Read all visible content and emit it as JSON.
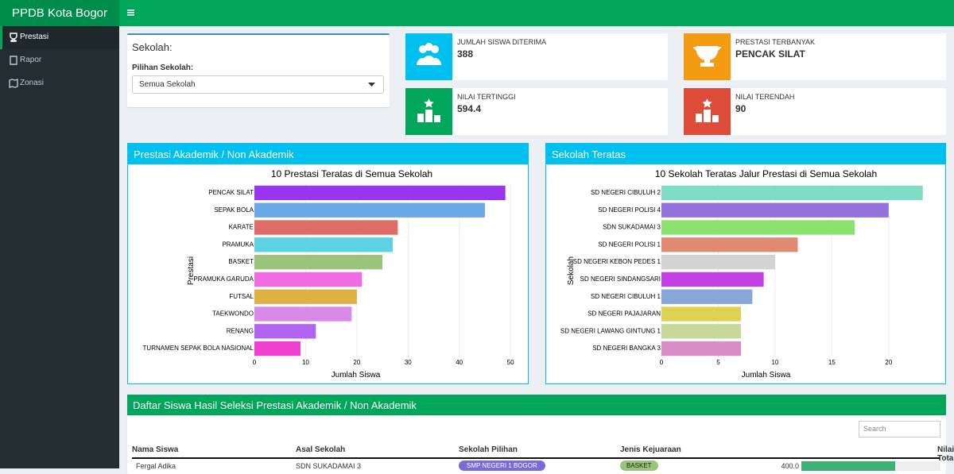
{
  "header": {
    "brand": "PPDB Kota Bogor"
  },
  "menu": [
    "Prestasi",
    "Rapor",
    "Zonasi"
  ],
  "filter": {
    "title": "Sekolah:",
    "label": "Pilihan Sekolah:",
    "selected": "Semua Sekolah"
  },
  "stats": [
    {
      "label": "JUMLAH SISWA DITERIMA",
      "value": 388,
      "color": "#00c0ef"
    },
    {
      "label": "PRESTASI TERBANYAK",
      "value": "PENCAK SILAT",
      "color": "#f39c12"
    },
    {
      "label": "NILAI TERTINGGI",
      "value": 594.4,
      "color": "#00a65a"
    },
    {
      "label": "NILAI TERENDAH",
      "value": 90,
      "color": "#dd4b39"
    }
  ],
  "panels": [
    "Prestasi Akademik / Non Akademik",
    "Sekolah Teratas"
  ],
  "chart_data": [
    {
      "type": "hbar",
      "title": "10 Prestasi Teratas di Semua Sekolah",
      "x_label": "Jumlah Siswa",
      "y_label": "Prestasi",
      "categories": [
        "PENCAK SILAT",
        "SEPAK BOLA",
        "KARATE",
        "PRAMUKA",
        "BASKET",
        "PRAMUKA GARUDA",
        "FUTSAL",
        "TAEKWONDO",
        "RENANG",
        "TURNAMEN SEPAK BOLA NASIONAL"
      ],
      "values": [
        49,
        45,
        28,
        27,
        25,
        21,
        20,
        19,
        12,
        9
      ],
      "colors": [
        "#9a35ee",
        "#6aa7e6",
        "#e06c68",
        "#5ed2e2",
        "#98c57a",
        "#ef6ce2",
        "#e0b143",
        "#d98ae8",
        "#b064f0",
        "#ef40cf"
      ],
      "xlim": [
        0,
        52
      ],
      "xticks": [
        0,
        10,
        20,
        30,
        40,
        50
      ],
      "grid": true
    },
    {
      "type": "hbar",
      "title": "10 Sekolah Teratas Jalur Prestasi di Semua Sekolah",
      "x_label": "Jumlah Siswa",
      "y_label": "Sekolah",
      "categories": [
        "SD NEGERI CIBULUH 2",
        "SD NEGERI POLISI 4",
        "SDN SUKADAMAI 3",
        "SD NEGERI POLISI 1",
        "SD NEGERI KEBON PEDES 1",
        "SD NEGERI SINDANGSARI",
        "SD NEGERI CIBULUH 1",
        "SD NEGERI PAJAJARAN",
        "SD NEGERI LAWANG GINTUNG 1",
        "SD NEGERI BANGKA 3"
      ],
      "values": [
        23,
        20,
        17,
        12,
        10,
        9,
        8,
        7,
        7,
        7
      ],
      "colors": [
        "#7fdcc6",
        "#9272da",
        "#8ae170",
        "#e08a72",
        "#d3d3d3",
        "#c23fe2",
        "#87a7d8",
        "#e1d152",
        "#c8d898",
        "#d98cc8"
      ],
      "xlim": [
        0,
        24
      ],
      "xticks": [
        0,
        5,
        10,
        15,
        20
      ],
      "grid": true
    }
  ],
  "table": {
    "title": "Daftar Siswa Hasil Seleksi Prestasi Akademik / Non Akademik",
    "search": "Search",
    "columns": [
      "Nama Siswa",
      "Asal Sekolah",
      "Sekolah Pilihan",
      "Jenis Kejuaraan",
      "Nilai Total"
    ],
    "rows": [
      [
        "Fergal Adika",
        "SDN SUKADAMAI 3",
        "SMP NEGERI 1 BOGOR",
        "BASKET",
        {
          "value": 400,
          "label": "400.0"
        }
      ]
    ]
  }
}
